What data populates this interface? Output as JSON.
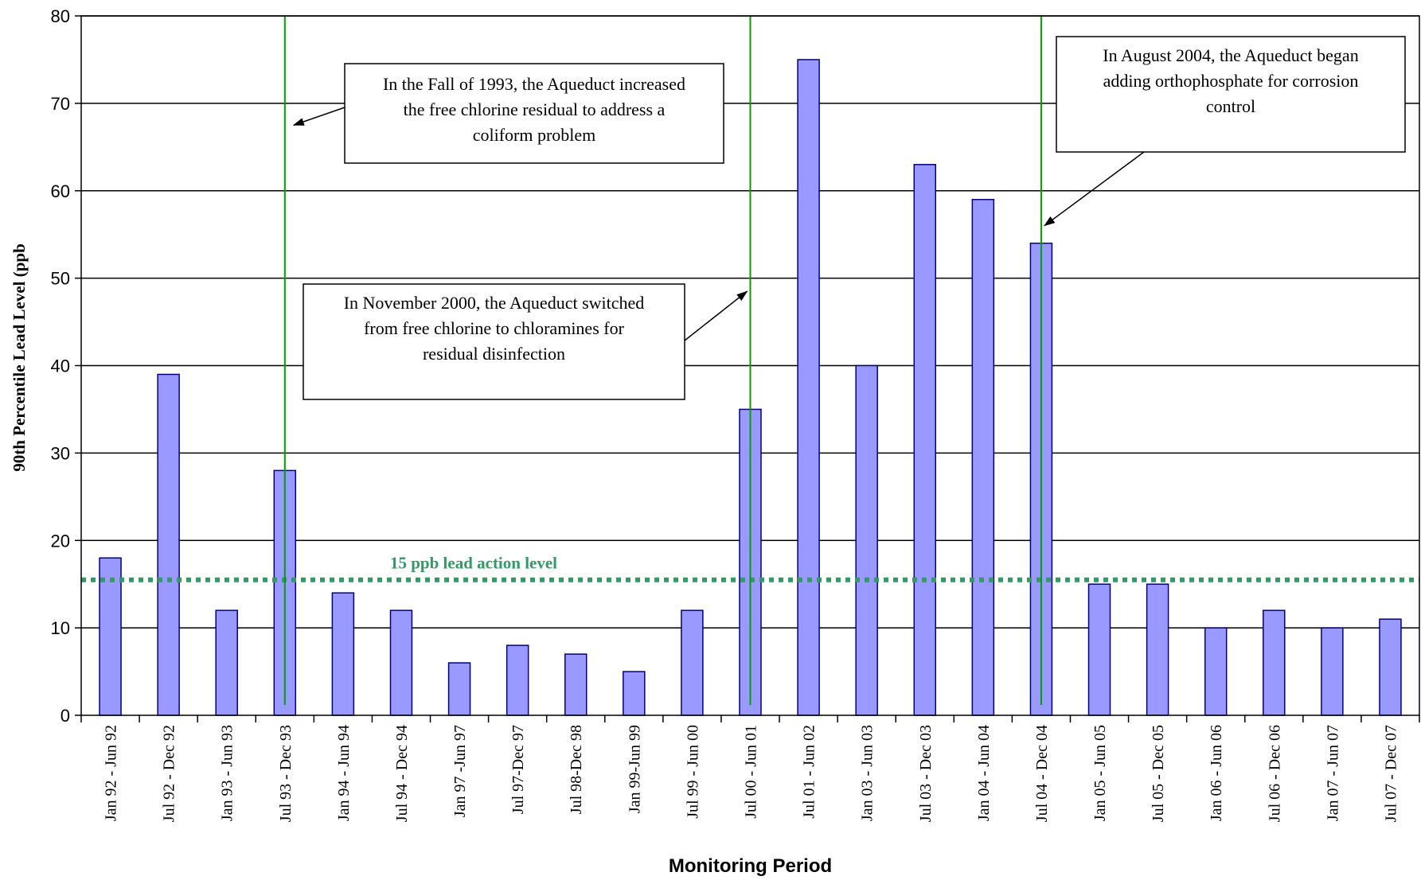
{
  "chart_data": {
    "type": "bar",
    "title": "",
    "xlabel": "Monitoring Period",
    "ylabel": "90th Percentile Lead Level (ppb",
    "ylim": [
      0,
      80
    ],
    "yticks": [
      0,
      10,
      20,
      30,
      40,
      50,
      60,
      70,
      80
    ],
    "grid": true,
    "categories": [
      "Jan 92 - Jun 92",
      "Jul 92 - Dec 92",
      "Jan 93 - Jun 93",
      "Jul 93 - Dec 93",
      "Jan 94 - Jun 94",
      "Jul 94 - Dec 94",
      "Jan 97 -Jun 97",
      "Jul 97-Dec 97",
      "Jul 98-Dec 98",
      "Jan 99-Jun 99",
      "Jul 99 - Jun 00",
      "Jul 00 - Jun 01",
      "Jul 01 - Jun 02",
      "Jan 03 - Jun 03",
      "Jul 03 - Dec 03",
      "Jan 04 - Jun 04",
      "Jul 04 - Dec 04",
      "Jan 05 - Jun 05",
      "Jul 05 - Dec 05",
      "Jan 06 - Jun 06",
      "Jul 06 - Dec 06",
      "Jan 07 - Jun 07",
      "Jul 07 - Dec 07"
    ],
    "values": [
      18,
      39,
      12,
      28,
      14,
      12,
      6,
      8,
      7,
      5,
      12,
      35,
      75,
      40,
      63,
      59,
      54,
      15,
      15,
      10,
      12,
      10,
      11
    ],
    "bar_color": "#9999ff",
    "bar_edge_color": "#000080",
    "reference_line": {
      "value": 15.5,
      "label": "15 ppb lead action level",
      "color": "#339966",
      "style": "dotted"
    },
    "event_lines": [
      {
        "category_index": 3,
        "color": "#00a000"
      },
      {
        "category_index": 11,
        "color": "#00a000"
      },
      {
        "category_index": 16,
        "color": "#00a000"
      }
    ],
    "annotations": [
      {
        "lines": [
          "In the Fall of 1993, the Aqueduct increased",
          "the free chlorine residual to address a",
          "coliform problem"
        ],
        "target_category_index": 3,
        "target_value": 67.5
      },
      {
        "lines": [
          "In November 2000, the Aqueduct switched",
          "from free chlorine to chloramines for",
          "residual disinfection"
        ],
        "target_category_index": 11,
        "target_value": 48.5
      },
      {
        "lines": [
          "In August 2004, the Aqueduct began",
          "adding orthophosphate for corrosion",
          "control"
        ],
        "target_category_index": 16,
        "target_value": 56
      }
    ]
  }
}
